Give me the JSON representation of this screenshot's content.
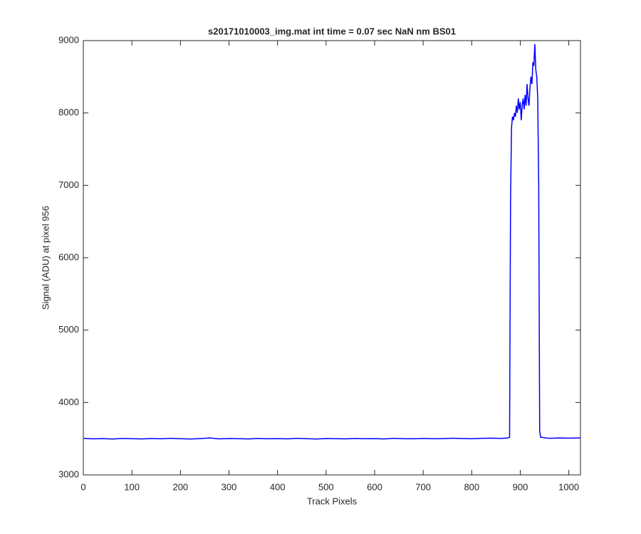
{
  "chart_data": {
    "type": "line",
    "title": "s20171010003_img.mat int time = 0.07 sec  NaN nm BS01",
    "x_label": "Track Pixels",
    "y_label": "Signal (ADU) at pixel 956",
    "x": [
      1,
      20,
      40,
      60,
      80,
      100,
      120,
      140,
      160,
      180,
      200,
      220,
      240,
      260,
      280,
      300,
      320,
      340,
      360,
      380,
      400,
      420,
      440,
      460,
      480,
      500,
      520,
      540,
      560,
      580,
      600,
      620,
      640,
      660,
      680,
      700,
      720,
      740,
      760,
      780,
      800,
      820,
      840,
      860,
      874,
      878,
      880,
      882,
      884,
      886,
      888,
      890,
      892,
      894,
      896,
      898,
      900,
      902,
      904,
      906,
      908,
      910,
      912,
      914,
      916,
      918,
      920,
      922,
      924,
      926,
      928,
      930,
      932,
      934,
      936,
      938,
      940,
      942,
      960,
      980,
      1000,
      1024
    ],
    "series": [
      {
        "name": "Signal",
        "color": "#0000ff",
        "values": [
          3505,
          3498,
          3502,
          3496,
          3504,
          3500,
          3497,
          3503,
          3499,
          3505,
          3501,
          3496,
          3502,
          3510,
          3498,
          3503,
          3500,
          3497,
          3504,
          3499,
          3502,
          3498,
          3505,
          3500,
          3496,
          3503,
          3501,
          3498,
          3504,
          3500,
          3502,
          3497,
          3505,
          3501,
          3499,
          3504,
          3500,
          3502,
          3506,
          3503,
          3501,
          3505,
          3508,
          3504,
          3510,
          3520,
          6800,
          7800,
          7950,
          7900,
          8000,
          7950,
          8100,
          8000,
          8200,
          8050,
          8150,
          7900,
          8100,
          8200,
          8050,
          8250,
          8100,
          8400,
          8200,
          8100,
          8350,
          8500,
          8400,
          8700,
          8650,
          8950,
          8600,
          8500,
          8200,
          7000,
          3600,
          3520,
          3505,
          3510,
          3508,
          3512
        ]
      }
    ],
    "xlim": [
      0,
      1024
    ],
    "ylim": [
      3000,
      9000
    ],
    "xticks": [
      0,
      100,
      200,
      300,
      400,
      500,
      600,
      700,
      800,
      900,
      1000
    ],
    "yticks": [
      3000,
      4000,
      5000,
      6000,
      7000,
      8000,
      9000
    ]
  }
}
